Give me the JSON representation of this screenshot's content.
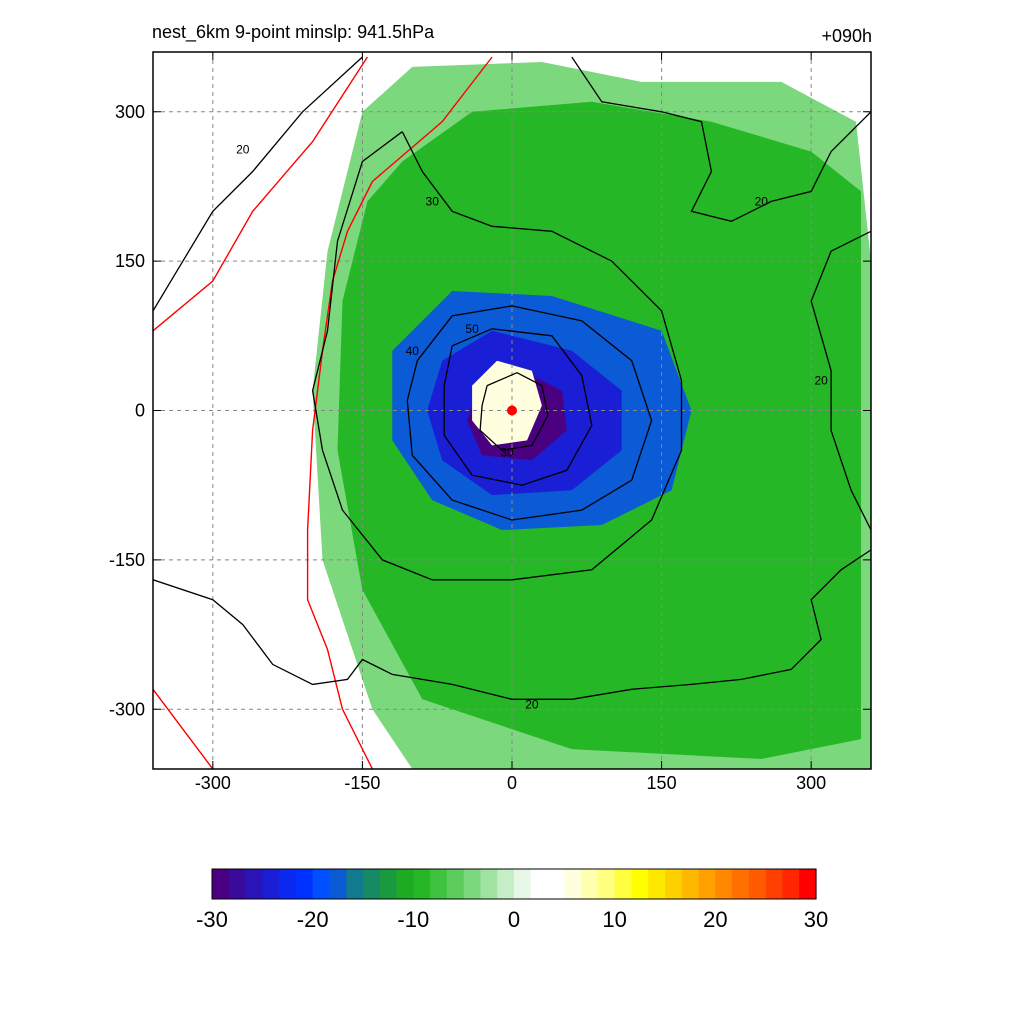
{
  "header": {
    "title": "nest_6km  9-point minslp: 941.5hPa",
    "time_label": "+090h"
  },
  "chart_data": [
    {
      "type": "heatmap",
      "title": "nest_6km  9-point minslp: 941.5hPa",
      "time_label": "+090h",
      "xlim": [
        -360,
        360
      ],
      "ylim": [
        -360,
        360
      ],
      "x_ticks": [
        -300,
        -150,
        0,
        150,
        300
      ],
      "y_ticks": [
        300,
        150,
        0,
        -150,
        -300
      ],
      "grid": true,
      "grid_style": "dashed",
      "storm_center": {
        "x": 0,
        "y": 0,
        "marker_color": "#ff0000"
      },
      "shaded_regions": [
        {
          "value": -4,
          "path": [
            [
              -150,
              300
            ],
            [
              -100,
              345
            ],
            [
              30,
              350
            ],
            [
              130,
              330
            ],
            [
              270,
              330
            ],
            [
              345,
              290
            ],
            [
              360,
              150
            ],
            [
              360,
              -360
            ],
            [
              -100,
              -360
            ],
            [
              -140,
              -300
            ],
            [
              -190,
              -150
            ],
            [
              -200,
              20
            ],
            [
              -185,
              160
            ]
          ]
        },
        {
          "value": -10,
          "path": [
            [
              -110,
              250
            ],
            [
              -40,
              300
            ],
            [
              80,
              310
            ],
            [
              200,
              290
            ],
            [
              300,
              260
            ],
            [
              350,
              220
            ],
            [
              350,
              -330
            ],
            [
              250,
              -350
            ],
            [
              60,
              -340
            ],
            [
              -90,
              -290
            ],
            [
              -150,
              -180
            ],
            [
              -175,
              -40
            ],
            [
              -170,
              110
            ],
            [
              -145,
              210
            ]
          ]
        },
        {
          "value": -18,
          "path": [
            [
              -120,
              60
            ],
            [
              -60,
              120
            ],
            [
              40,
              115
            ],
            [
              150,
              80
            ],
            [
              180,
              0
            ],
            [
              160,
              -80
            ],
            [
              90,
              -115
            ],
            [
              -10,
              -120
            ],
            [
              -80,
              -90
            ],
            [
              -120,
              -30
            ]
          ]
        },
        {
          "value": -24,
          "path": [
            [
              -70,
              50
            ],
            [
              -20,
              80
            ],
            [
              60,
              60
            ],
            [
              110,
              20
            ],
            [
              110,
              -40
            ],
            [
              60,
              -80
            ],
            [
              -20,
              -85
            ],
            [
              -70,
              -50
            ],
            [
              -85,
              0
            ]
          ]
        },
        {
          "value": -30,
          "path": [
            [
              -30,
              30
            ],
            [
              10,
              40
            ],
            [
              50,
              20
            ],
            [
              55,
              -20
            ],
            [
              20,
              -50
            ],
            [
              -30,
              -45
            ],
            [
              -45,
              -10
            ]
          ]
        },
        {
          "value": 6,
          "path": [
            [
              -40,
              25
            ],
            [
              -15,
              50
            ],
            [
              20,
              40
            ],
            [
              30,
              5
            ],
            [
              15,
              -30
            ],
            [
              -20,
              -35
            ],
            [
              -40,
              -10
            ]
          ]
        }
      ],
      "contour_lines": [
        {
          "level": 20,
          "path": [
            [
              -360,
              100
            ],
            [
              -330,
              150
            ],
            [
              -300,
              200
            ],
            [
              -260,
              240
            ],
            [
              -210,
              300
            ],
            [
              -150,
              355
            ]
          ],
          "label_at": [
            -270,
            262
          ]
        },
        {
          "level": 20,
          "path": [
            [
              -360,
              -170
            ],
            [
              -300,
              -190
            ],
            [
              -270,
              -215
            ],
            [
              -240,
              -255
            ],
            [
              -200,
              -275
            ],
            [
              -165,
              -270
            ],
            [
              -150,
              -250
            ],
            [
              -120,
              -265
            ],
            [
              -60,
              -275
            ],
            [
              0,
              -290
            ],
            [
              60,
              -290
            ],
            [
              120,
              -280
            ],
            [
              180,
              -275
            ],
            [
              230,
              -270
            ],
            [
              280,
              -260
            ],
            [
              310,
              -230
            ],
            [
              300,
              -190
            ],
            [
              330,
              -160
            ],
            [
              360,
              -140
            ]
          ],
          "label_at": [
            20,
            -295
          ]
        },
        {
          "level": 20,
          "path": [
            [
              360,
              180
            ],
            [
              320,
              160
            ],
            [
              300,
              110
            ],
            [
              320,
              40
            ],
            [
              320,
              -20
            ],
            [
              340,
              -80
            ],
            [
              360,
              -120
            ]
          ],
          "label_at": [
            310,
            30
          ]
        },
        {
          "level": 20,
          "path": [
            [
              60,
              355
            ],
            [
              90,
              310
            ],
            [
              150,
              300
            ],
            [
              190,
              290
            ],
            [
              200,
              240
            ],
            [
              180,
              200
            ],
            [
              220,
              190
            ],
            [
              260,
              210
            ],
            [
              300,
              220
            ],
            [
              320,
              260
            ],
            [
              360,
              300
            ]
          ],
          "label_at": [
            250,
            210
          ]
        },
        {
          "level": 30,
          "path": [
            [
              -110,
              280
            ],
            [
              -150,
              250
            ],
            [
              -175,
              170
            ],
            [
              -185,
              80
            ],
            [
              -200,
              20
            ],
            [
              -190,
              -40
            ],
            [
              -170,
              -100
            ],
            [
              -130,
              -150
            ],
            [
              -80,
              -170
            ],
            [
              0,
              -170
            ],
            [
              80,
              -160
            ],
            [
              140,
              -110
            ],
            [
              170,
              -40
            ],
            [
              170,
              30
            ],
            [
              150,
              100
            ],
            [
              100,
              150
            ],
            [
              40,
              180
            ],
            [
              -20,
              185
            ],
            [
              -60,
              200
            ],
            [
              -90,
              240
            ],
            [
              -110,
              280
            ]
          ],
          "label_at": [
            -80,
            210
          ]
        },
        {
          "level": 40,
          "path": [
            [
              -95,
              50
            ],
            [
              -60,
              95
            ],
            [
              0,
              105
            ],
            [
              70,
              90
            ],
            [
              120,
              50
            ],
            [
              140,
              -10
            ],
            [
              120,
              -70
            ],
            [
              70,
              -100
            ],
            [
              0,
              -110
            ],
            [
              -60,
              -90
            ],
            [
              -100,
              -45
            ],
            [
              -105,
              10
            ],
            [
              -95,
              50
            ]
          ],
          "label_at": [
            -100,
            60
          ]
        },
        {
          "level": 50,
          "path": [
            [
              -60,
              65
            ],
            [
              -20,
              82
            ],
            [
              40,
              75
            ],
            [
              70,
              35
            ],
            [
              80,
              -15
            ],
            [
              55,
              -60
            ],
            [
              10,
              -75
            ],
            [
              -40,
              -65
            ],
            [
              -68,
              -25
            ],
            [
              -68,
              25
            ],
            [
              -60,
              65
            ]
          ],
          "label_at": [
            -40,
            82
          ]
        },
        {
          "level": 30,
          "path": [
            [
              -25,
              25
            ],
            [
              5,
              38
            ],
            [
              30,
              25
            ],
            [
              36,
              -5
            ],
            [
              20,
              -35
            ],
            [
              -10,
              -40
            ],
            [
              -32,
              -20
            ],
            [
              -30,
              5
            ],
            [
              -25,
              25
            ]
          ],
          "label_at": [
            -5,
            -42
          ]
        }
      ],
      "coastlines": [
        [
          [
            -360,
            80
          ],
          [
            -300,
            130
          ],
          [
            -260,
            200
          ],
          [
            -200,
            270
          ],
          [
            -145,
            355
          ]
        ],
        [
          [
            -360,
            -280
          ],
          [
            -330,
            -320
          ],
          [
            -300,
            -360
          ]
        ],
        [
          [
            -20,
            355
          ],
          [
            -70,
            290
          ],
          [
            -140,
            230
          ],
          [
            -165,
            180
          ],
          [
            -180,
            130
          ],
          [
            -190,
            60
          ],
          [
            -200,
            -20
          ],
          [
            -205,
            -120
          ],
          [
            -205,
            -190
          ],
          [
            -185,
            -240
          ],
          [
            -170,
            -300
          ],
          [
            -140,
            -360
          ]
        ]
      ],
      "colorbar": {
        "ticks": [
          -30,
          -20,
          -10,
          0,
          10,
          20,
          30
        ],
        "range": [
          -30,
          30
        ],
        "colors": [
          "#4b0082",
          "#3a0a9c",
          "#2a14b8",
          "#1a1ed4",
          "#0a28f0",
          "#0032ff",
          "#0050ff",
          "#0b5ad6",
          "#117a8e",
          "#168a65",
          "#1a9a3f",
          "#1cab22",
          "#25b725",
          "#3fc33f",
          "#5ccd5c",
          "#7cd87c",
          "#a0e3a0",
          "#c6eec6",
          "#e8f8e8",
          "#ffffff",
          "#ffffff",
          "#ffffe0",
          "#ffffb0",
          "#ffff80",
          "#ffff40",
          "#ffff00",
          "#ffe800",
          "#ffd000",
          "#ffb800",
          "#ffa000",
          "#ff8800",
          "#ff7000",
          "#ff5a00",
          "#ff4000",
          "#ff2600",
          "#ff0000"
        ]
      }
    }
  ]
}
